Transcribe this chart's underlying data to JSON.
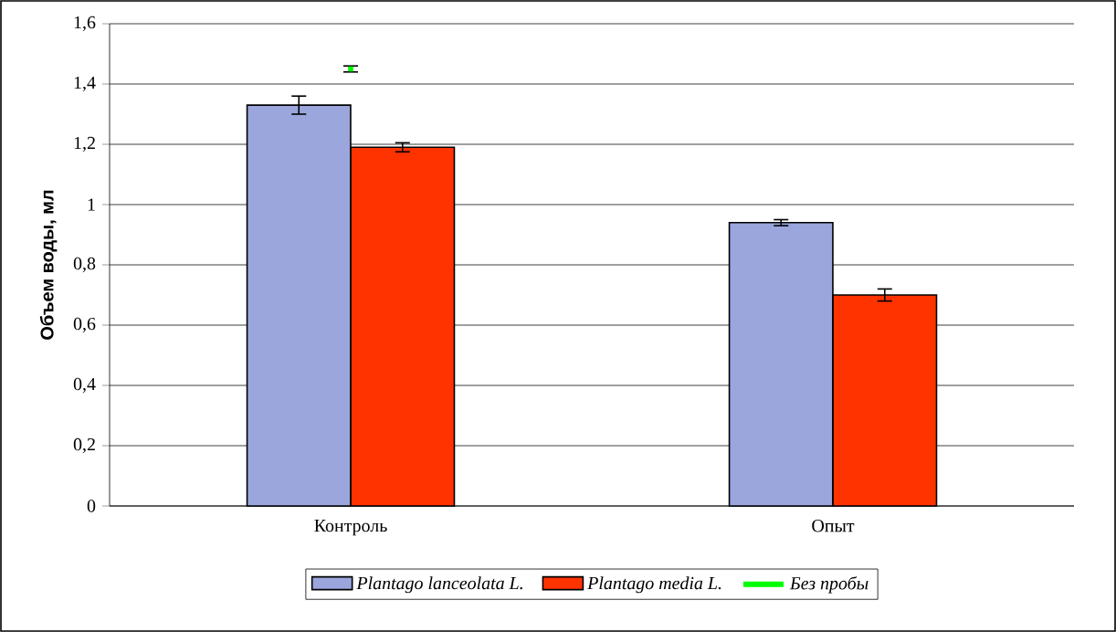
{
  "chart_data": {
    "type": "bar",
    "ylabel": "Объем воды, мл",
    "categories": [
      "Контроль",
      "Опыт"
    ],
    "series": [
      {
        "name": "*Plantago lanceolata L.*",
        "color": "#9aa6dc",
        "values": [
          1.33,
          0.94
        ],
        "errors": [
          0.03,
          0.01
        ]
      },
      {
        "name": "*Plantago media L.*",
        "color": "#ff3300",
        "values": [
          1.19,
          0.7
        ],
        "errors": [
          0.015,
          0.02
        ]
      },
      {
        "name": "*Без пробы*",
        "type": "scatter",
        "marker": "square",
        "color": "#00ff00",
        "values": [
          1.45,
          null
        ],
        "errors": [
          0.01,
          null
        ]
      }
    ],
    "ylim": [
      0,
      1.6
    ],
    "yticks": [
      0,
      {
        "value": 0.2,
        "label": "0,2"
      },
      {
        "value": 0.4,
        "label": "0,4"
      },
      {
        "value": 0.6,
        "label": "0,6"
      },
      {
        "value": 0.8,
        "label": "0,8"
      },
      1,
      {
        "value": 1.2,
        "label": "1,2"
      },
      {
        "value": 1.4,
        "label": "1,4"
      },
      {
        "value": 1.6,
        "label": "1,6"
      }
    ],
    "grid": "y",
    "legend": "bottom"
  }
}
